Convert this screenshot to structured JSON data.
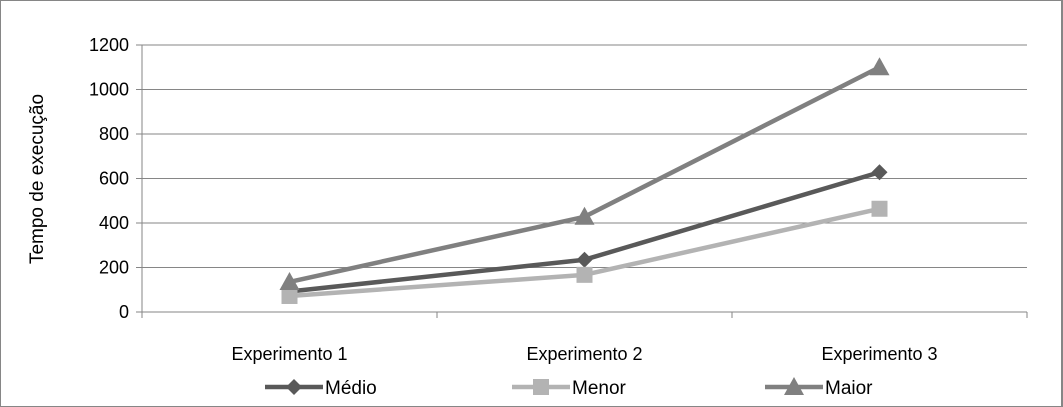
{
  "chart_data": {
    "type": "line",
    "title": "",
    "xlabel": "",
    "ylabel": "Tempo de execução",
    "ylim": [
      0,
      1200
    ],
    "yticks": [
      0,
      200,
      400,
      600,
      800,
      1000,
      1200
    ],
    "grid": true,
    "legend_position": "bottom",
    "categories": [
      "Experimento 1",
      "Experimento 2",
      "Experimento 3"
    ],
    "series": [
      {
        "name": "Médio",
        "values": [
          92,
          235,
          628
        ],
        "color": "#595959",
        "marker": "diamond"
      },
      {
        "name": "Menor",
        "values": [
          72,
          167,
          464
        ],
        "color": "#b3b3b3",
        "marker": "square"
      },
      {
        "name": "Maior",
        "values": [
          135,
          428,
          1100
        ],
        "color": "#808080",
        "marker": "triangle"
      }
    ]
  }
}
